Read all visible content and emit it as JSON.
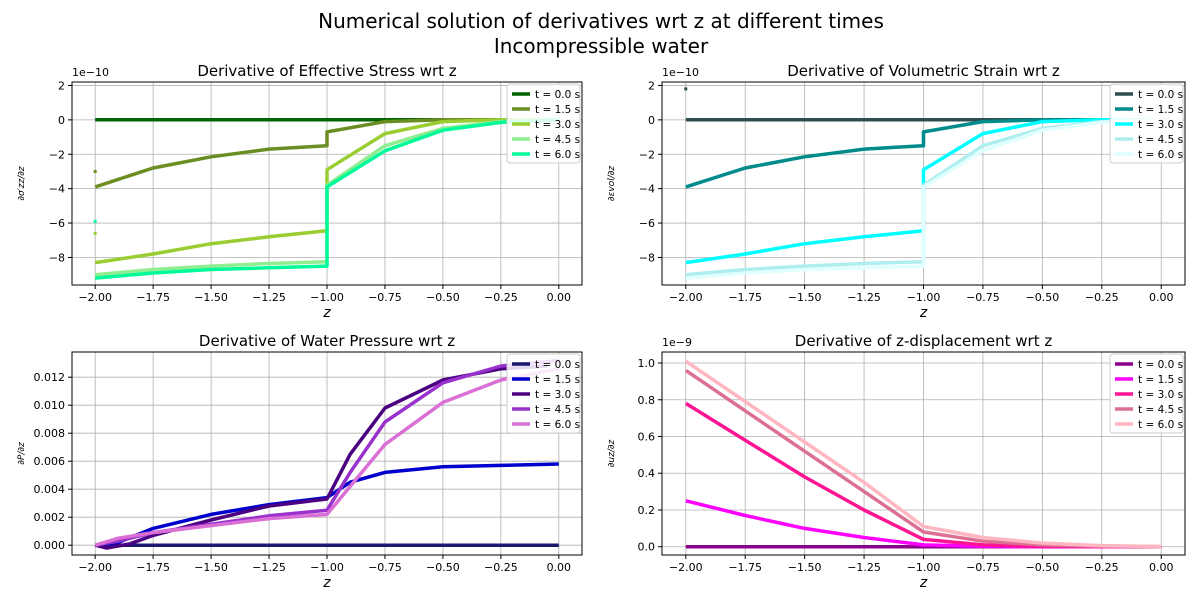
{
  "figure": {
    "title_line1": "Numerical solution of derivatives wrt z at different times",
    "title_line2": "Incompressible water"
  },
  "chart_data": [
    {
      "type": "line",
      "title": "Derivative of Effective Stress wrt z",
      "xlabel": "z",
      "ylabel": "∂σ′zz/∂z",
      "offset_text": "1e−10",
      "scale": 1e-10,
      "xlim": [
        -2.1,
        0.1
      ],
      "ylim": [
        -9.6,
        2.2
      ],
      "xticks": [
        -2.0,
        -1.75,
        -1.5,
        -1.25,
        -1.0,
        -0.75,
        -0.5,
        -0.25,
        0.0
      ],
      "xtick_labels": [
        "−2.00",
        "−1.75",
        "−1.50",
        "−1.25",
        "−1.00",
        "−0.75",
        "−0.50",
        "−0.25",
        "0.00"
      ],
      "yticks": [
        -8,
        -6,
        -4,
        -2,
        0,
        2
      ],
      "ytick_labels": [
        "−8",
        "−6",
        "−4",
        "−2",
        "0",
        "2"
      ],
      "grid": true,
      "legend": "top-right",
      "series": [
        {
          "name": "t = 0.0 s",
          "color": "#006400",
          "points": [
            [
              -2.0,
              0
            ],
            [
              0.0,
              0
            ]
          ]
        },
        {
          "name": "t = 1.5 s",
          "color": "#6b8e23",
          "points": [
            [
              -2.0,
              -3.9
            ],
            [
              -1.75,
              -2.8
            ],
            [
              -1.5,
              -2.15
            ],
            [
              -1.25,
              -1.7
            ],
            [
              -1.0,
              -1.5
            ],
            [
              -1.0,
              -0.7
            ],
            [
              -0.75,
              -0.1
            ],
            [
              -0.5,
              0
            ],
            [
              0.0,
              0
            ]
          ],
          "markers": [
            [
              -2.0,
              -3.0
            ]
          ]
        },
        {
          "name": "t = 3.0 s",
          "color": "#9acd32",
          "points": [
            [
              -2.0,
              -8.3
            ],
            [
              -1.75,
              -7.8
            ],
            [
              -1.5,
              -7.2
            ],
            [
              -1.25,
              -6.8
            ],
            [
              -1.0,
              -6.45
            ],
            [
              -1.0,
              -2.9
            ],
            [
              -0.75,
              -0.8
            ],
            [
              -0.5,
              -0.1
            ],
            [
              -0.25,
              0
            ],
            [
              0.0,
              0
            ]
          ],
          "markers": [
            [
              -2.0,
              -6.6
            ]
          ]
        },
        {
          "name": "t = 4.5 s",
          "color": "#90ee90",
          "points": [
            [
              -2.0,
              -9.0
            ],
            [
              -1.75,
              -8.7
            ],
            [
              -1.5,
              -8.5
            ],
            [
              -1.25,
              -8.35
            ],
            [
              -1.0,
              -8.25
            ],
            [
              -1.0,
              -3.8
            ],
            [
              -0.75,
              -1.5
            ],
            [
              -0.5,
              -0.5
            ],
            [
              -0.25,
              -0.1
            ],
            [
              0.0,
              0
            ]
          ]
        },
        {
          "name": "t = 6.0 s",
          "color": "#00fa9a",
          "points": [
            [
              -2.0,
              -9.2
            ],
            [
              -1.75,
              -8.9
            ],
            [
              -1.5,
              -8.7
            ],
            [
              -1.25,
              -8.6
            ],
            [
              -1.0,
              -8.5
            ],
            [
              -1.0,
              -3.9
            ],
            [
              -0.75,
              -1.8
            ],
            [
              -0.5,
              -0.6
            ],
            [
              -0.25,
              -0.15
            ],
            [
              0.0,
              0
            ]
          ],
          "markers": [
            [
              -2.0,
              -5.9
            ]
          ]
        }
      ]
    },
    {
      "type": "line",
      "title": "Derivative of Volumetric Strain wrt z",
      "xlabel": "z",
      "ylabel": "∂εvol/∂z",
      "offset_text": "1e−10",
      "scale": 1e-10,
      "xlim": [
        -2.1,
        0.1
      ],
      "ylim": [
        -9.6,
        2.2
      ],
      "xticks": [
        -2.0,
        -1.75,
        -1.5,
        -1.25,
        -1.0,
        -0.75,
        -0.5,
        -0.25,
        0.0
      ],
      "xtick_labels": [
        "−2.00",
        "−1.75",
        "−1.50",
        "−1.25",
        "−1.00",
        "−0.75",
        "−0.50",
        "−0.25",
        "0.00"
      ],
      "yticks": [
        -8,
        -6,
        -4,
        -2,
        0,
        2
      ],
      "ytick_labels": [
        "−8",
        "−6",
        "−4",
        "−2",
        "0",
        "2"
      ],
      "grid": true,
      "legend": "top-right",
      "series": [
        {
          "name": "t = 0.0 s",
          "color": "#2f4f4f",
          "points": [
            [
              -2.0,
              0
            ],
            [
              0.0,
              0
            ]
          ],
          "markers": [
            [
              -2.0,
              1.8
            ]
          ]
        },
        {
          "name": "t = 1.5 s",
          "color": "#008b8b",
          "points": [
            [
              -2.0,
              -3.9
            ],
            [
              -1.75,
              -2.8
            ],
            [
              -1.5,
              -2.15
            ],
            [
              -1.25,
              -1.7
            ],
            [
              -1.0,
              -1.5
            ],
            [
              -1.0,
              -0.7
            ],
            [
              -0.75,
              -0.1
            ],
            [
              -0.5,
              0
            ],
            [
              0.0,
              0
            ]
          ]
        },
        {
          "name": "t = 3.0 s",
          "color": "#00ffff",
          "points": [
            [
              -2.0,
              -8.3
            ],
            [
              -1.75,
              -7.8
            ],
            [
              -1.5,
              -7.2
            ],
            [
              -1.25,
              -6.8
            ],
            [
              -1.0,
              -6.45
            ],
            [
              -1.0,
              -2.9
            ],
            [
              -0.75,
              -0.8
            ],
            [
              -0.5,
              -0.1
            ],
            [
              -0.25,
              0
            ],
            [
              0.0,
              0
            ]
          ]
        },
        {
          "name": "t = 4.5 s",
          "color": "#afeeee",
          "points": [
            [
              -2.0,
              -9.0
            ],
            [
              -1.75,
              -8.7
            ],
            [
              -1.5,
              -8.5
            ],
            [
              -1.25,
              -8.35
            ],
            [
              -1.0,
              -8.25
            ],
            [
              -1.0,
              -3.8
            ],
            [
              -0.75,
              -1.5
            ],
            [
              -0.5,
              -0.5
            ],
            [
              -0.25,
              -0.1
            ],
            [
              0.0,
              0
            ]
          ]
        },
        {
          "name": "t = 6.0 s",
          "color": "#e0ffff",
          "points": [
            [
              -2.0,
              -9.2
            ],
            [
              -1.75,
              -8.9
            ],
            [
              -1.5,
              -8.7
            ],
            [
              -1.25,
              -8.6
            ],
            [
              -1.0,
              -8.5
            ],
            [
              -1.0,
              -3.9
            ],
            [
              -0.75,
              -1.8
            ],
            [
              -0.5,
              -0.6
            ],
            [
              -0.25,
              -0.15
            ],
            [
              0.0,
              0
            ]
          ]
        }
      ]
    },
    {
      "type": "line",
      "title": "Derivative of Water Pressure wrt z",
      "xlabel": "z",
      "ylabel": "∂P/∂z",
      "offset_text": "",
      "scale": 1,
      "xlim": [
        -2.1,
        0.1
      ],
      "ylim": [
        -0.0007,
        0.0138
      ],
      "xticks": [
        -2.0,
        -1.75,
        -1.5,
        -1.25,
        -1.0,
        -0.75,
        -0.5,
        -0.25,
        0.0
      ],
      "xtick_labels": [
        "−2.00",
        "−1.75",
        "−1.50",
        "−1.25",
        "−1.00",
        "−0.75",
        "−0.50",
        "−0.25",
        "0.00"
      ],
      "yticks": [
        0,
        0.002,
        0.004,
        0.006,
        0.008,
        0.01,
        0.012
      ],
      "ytick_labels": [
        "0.000",
        "0.002",
        "0.004",
        "0.006",
        "0.008",
        "0.010",
        "0.012"
      ],
      "grid": true,
      "legend": "top-right",
      "series": [
        {
          "name": "t = 0.0 s",
          "color": "#191970",
          "points": [
            [
              -2.0,
              0
            ],
            [
              0.0,
              0
            ]
          ]
        },
        {
          "name": "t = 1.5 s",
          "color": "#0000cd",
          "points": [
            [
              -2.0,
              0
            ],
            [
              -1.9,
              0.0002
            ],
            [
              -1.75,
              0.0012
            ],
            [
              -1.5,
              0.0022
            ],
            [
              -1.25,
              0.0029
            ],
            [
              -1.0,
              0.0034
            ],
            [
              -0.9,
              0.0045
            ],
            [
              -0.75,
              0.0052
            ],
            [
              -0.5,
              0.0056
            ],
            [
              -0.25,
              0.0057
            ],
            [
              0.0,
              0.0058
            ]
          ]
        },
        {
          "name": "t = 3.0 s",
          "color": "#4b0082",
          "points": [
            [
              -2.0,
              0
            ],
            [
              -1.95,
              -0.0002
            ],
            [
              -1.85,
              0.0001
            ],
            [
              -1.75,
              0.0007
            ],
            [
              -1.5,
              0.0018
            ],
            [
              -1.25,
              0.0028
            ],
            [
              -1.0,
              0.0033
            ],
            [
              -0.9,
              0.0065
            ],
            [
              -0.75,
              0.0098
            ],
            [
              -0.5,
              0.0118
            ],
            [
              -0.25,
              0.0126
            ],
            [
              -0.05,
              0.0128
            ]
          ]
        },
        {
          "name": "t = 4.5 s",
          "color": "#9932cc",
          "points": [
            [
              -2.0,
              0
            ],
            [
              -1.9,
              0.0003
            ],
            [
              -1.75,
              0.0009
            ],
            [
              -1.5,
              0.0015
            ],
            [
              -1.25,
              0.0021
            ],
            [
              -1.0,
              0.0025
            ],
            [
              -0.9,
              0.0052
            ],
            [
              -0.75,
              0.0088
            ],
            [
              -0.5,
              0.0116
            ],
            [
              -0.25,
              0.0128
            ],
            [
              0.0,
              0.0132
            ]
          ]
        },
        {
          "name": "t = 6.0 s",
          "color": "#da70d6",
          "points": [
            [
              -2.0,
              0
            ],
            [
              -1.9,
              0.0005
            ],
            [
              -1.75,
              0.0009
            ],
            [
              -1.5,
              0.0014
            ],
            [
              -1.25,
              0.0019
            ],
            [
              -1.0,
              0.0022
            ],
            [
              -0.9,
              0.0042
            ],
            [
              -0.75,
              0.0072
            ],
            [
              -0.5,
              0.0102
            ],
            [
              -0.25,
              0.0118
            ],
            [
              0.0,
              0.0126
            ]
          ]
        }
      ]
    },
    {
      "type": "line",
      "title": "Derivative of z-displacement wrt z",
      "xlabel": "z",
      "ylabel": "∂uz/∂z",
      "offset_text": "1e−9",
      "scale": 1e-09,
      "xlim": [
        -2.1,
        0.1
      ],
      "ylim": [
        -0.045,
        1.06
      ],
      "xticks": [
        -2.0,
        -1.75,
        -1.5,
        -1.25,
        -1.0,
        -0.75,
        -0.5,
        -0.25,
        0.0
      ],
      "xtick_labels": [
        "−2.00",
        "−1.75",
        "−1.50",
        "−1.25",
        "−1.00",
        "−0.75",
        "−0.50",
        "−0.25",
        "0.00"
      ],
      "yticks": [
        0,
        0.2,
        0.4,
        0.6,
        0.8,
        1.0
      ],
      "ytick_labels": [
        "0.0",
        "0.2",
        "0.4",
        "0.6",
        "0.8",
        "1.0"
      ],
      "grid": true,
      "legend": "top-right",
      "series": [
        {
          "name": "t = 0.0 s",
          "color": "#8b008b",
          "points": [
            [
              -2.0,
              0
            ],
            [
              0.0,
              0
            ]
          ]
        },
        {
          "name": "t = 1.5 s",
          "color": "#ff00ff",
          "points": [
            [
              -2.0,
              0.25
            ],
            [
              -1.75,
              0.17
            ],
            [
              -1.5,
              0.1
            ],
            [
              -1.25,
              0.05
            ],
            [
              -1.0,
              0.01
            ],
            [
              -0.75,
              0.002
            ],
            [
              -0.5,
              0
            ],
            [
              0.0,
              0
            ]
          ]
        },
        {
          "name": "t = 3.0 s",
          "color": "#ff1493",
          "points": [
            [
              -2.0,
              0.78
            ],
            [
              -1.75,
              0.58
            ],
            [
              -1.5,
              0.38
            ],
            [
              -1.25,
              0.2
            ],
            [
              -1.0,
              0.04
            ],
            [
              -0.75,
              0.01
            ],
            [
              -0.5,
              0.002
            ],
            [
              0.0,
              0
            ]
          ]
        },
        {
          "name": "t = 4.5 s",
          "color": "#db7093",
          "points": [
            [
              -2.0,
              0.96
            ],
            [
              -1.75,
              0.74
            ],
            [
              -1.5,
              0.52
            ],
            [
              -1.25,
              0.3
            ],
            [
              -1.0,
              0.08
            ],
            [
              -0.75,
              0.03
            ],
            [
              -0.5,
              0.01
            ],
            [
              -0.25,
              0.003
            ],
            [
              0.0,
              0
            ]
          ]
        },
        {
          "name": "t = 6.0 s",
          "color": "#ffb6c1",
          "points": [
            [
              -2.0,
              1.01
            ],
            [
              -1.75,
              0.79
            ],
            [
              -1.5,
              0.57
            ],
            [
              -1.25,
              0.35
            ],
            [
              -1.0,
              0.11
            ],
            [
              -0.75,
              0.05
            ],
            [
              -0.5,
              0.02
            ],
            [
              -0.25,
              0.006
            ],
            [
              0.0,
              0.001
            ]
          ]
        }
      ]
    }
  ]
}
